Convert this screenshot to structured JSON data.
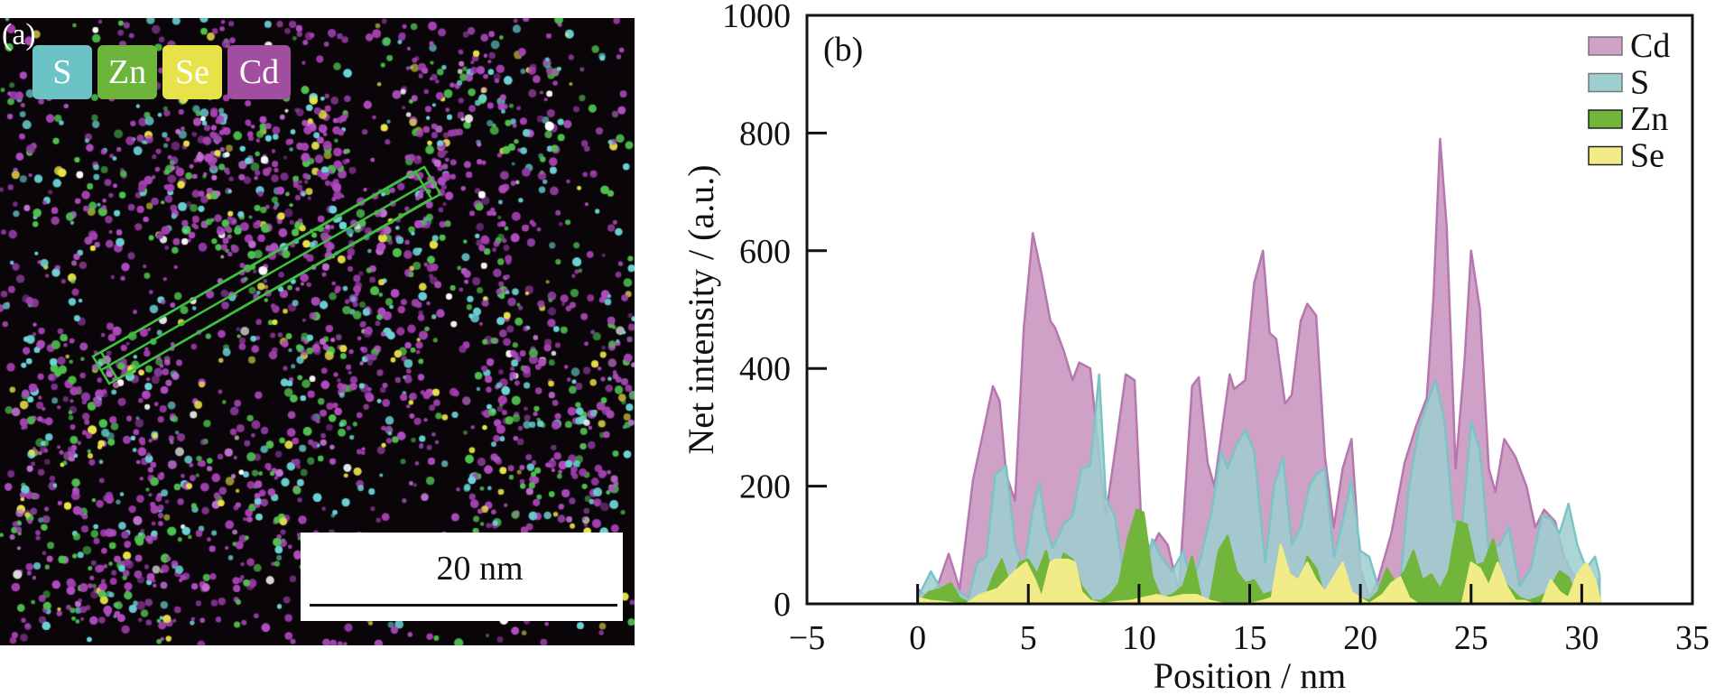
{
  "panel_a": {
    "label": "(a)",
    "elements": [
      {
        "name": "S",
        "color": "#6cc3c6"
      },
      {
        "name": "Zn",
        "color": "#6db43a"
      },
      {
        "name": "Se",
        "color": "#e8e24a"
      },
      {
        "name": "Cd",
        "color": "#a14ea0"
      }
    ],
    "scale_bar": "20 nm",
    "line_profile_color": "#3fbf3f"
  },
  "chart_data": {
    "type": "area",
    "panel_label": "(b)",
    "title": "",
    "xlabel": "Position / nm",
    "ylabel": "Net intensity / (a.u.)",
    "xlim": [
      -5,
      35
    ],
    "ylim": [
      0,
      1000
    ],
    "xticks": [
      "−5",
      "0",
      "5",
      "10",
      "15",
      "20",
      "25",
      "30",
      "35"
    ],
    "xtick_values": [
      -5,
      0,
      5,
      10,
      15,
      20,
      25,
      30,
      35
    ],
    "yticks": [
      "0",
      "200",
      "400",
      "600",
      "800",
      "1000"
    ],
    "ytick_values": [
      0,
      200,
      400,
      600,
      800,
      1000
    ],
    "grid": false,
    "legend_position": "top-right",
    "series": [
      {
        "name": "Cd",
        "fill": "#cfa1c6",
        "stroke": "#b676ae",
        "x": [
          0,
          0.5,
          0.9,
          1.4,
          1.9,
          2.5,
          2.9,
          3.4,
          3.7,
          4.0,
          4.4,
          4.8,
          5.2,
          5.6,
          6.0,
          6.2,
          6.6,
          7.0,
          7.3,
          7.8,
          8.2,
          8.5,
          9.0,
          9.4,
          9.8,
          10.1,
          10.5,
          10.9,
          11.3,
          11.8,
          12.4,
          12.7,
          13.1,
          13.4,
          13.8,
          14.1,
          14.3,
          14.8,
          15.2,
          15.6,
          15.9,
          16.2,
          16.6,
          16.9,
          17.3,
          17.6,
          18.0,
          18.4,
          18.8,
          19.2,
          19.6,
          20.0,
          20.4,
          20.8,
          21.4,
          22.0,
          22.5,
          23.0,
          23.3,
          23.6,
          23.9,
          24.3,
          24.7,
          25.0,
          25.4,
          25.8,
          26.1,
          26.5,
          27.0,
          27.5,
          27.9,
          28.3,
          28.8,
          29.2,
          29.6,
          30.1,
          30.6,
          30.8
        ],
        "y": [
          25,
          10,
          30,
          85,
          25,
          210,
          280,
          370,
          345,
          220,
          175,
          470,
          630,
          560,
          480,
          470,
          430,
          380,
          410,
          400,
          250,
          150,
          280,
          390,
          380,
          140,
          90,
          120,
          100,
          20,
          370,
          385,
          240,
          200,
          310,
          390,
          365,
          380,
          545,
          600,
          460,
          450,
          340,
          355,
          480,
          510,
          490,
          250,
          130,
          230,
          280,
          60,
          10,
          40,
          120,
          240,
          300,
          350,
          520,
          790,
          640,
          230,
          410,
          600,
          500,
          230,
          190,
          280,
          250,
          200,
          130,
          160,
          140,
          80,
          50,
          30,
          15,
          45
        ]
      },
      {
        "name": "S",
        "fill": "#9ecfcf",
        "stroke": "#7bc4c6",
        "x": [
          0,
          0.6,
          1.2,
          1.7,
          2.3,
          2.7,
          3.1,
          3.5,
          4.0,
          4.4,
          4.8,
          5.2,
          5.5,
          5.8,
          6.1,
          6.6,
          7.0,
          7.4,
          7.8,
          8.2,
          8.5,
          8.9,
          9.3,
          9.8,
          10.2,
          10.6,
          11.0,
          11.5,
          12.0,
          12.4,
          12.8,
          13.3,
          13.7,
          14.0,
          14.4,
          14.8,
          15.2,
          15.7,
          16.1,
          16.5,
          16.9,
          17.3,
          17.7,
          18.0,
          18.4,
          18.8,
          19.2,
          19.6,
          20.0,
          20.4,
          20.8,
          21.3,
          21.8,
          22.2,
          22.6,
          23.0,
          23.4,
          23.8,
          24.2,
          24.6,
          25.0,
          25.4,
          25.8,
          26.3,
          26.7,
          27.2,
          27.7,
          28.2,
          28.6,
          29.0,
          29.4,
          29.8,
          30.2,
          30.6,
          30.8
        ],
        "y": [
          10,
          55,
          15,
          25,
          10,
          70,
          80,
          220,
          235,
          100,
          60,
          160,
          205,
          130,
          95,
          135,
          150,
          230,
          235,
          390,
          180,
          150,
          50,
          60,
          40,
          110,
          80,
          55,
          90,
          35,
          80,
          160,
          260,
          230,
          270,
          295,
          260,
          70,
          200,
          250,
          100,
          130,
          200,
          220,
          230,
          80,
          140,
          210,
          90,
          80,
          30,
          10,
          35,
          200,
          290,
          340,
          380,
          310,
          140,
          130,
          310,
          260,
          90,
          100,
          130,
          30,
          60,
          150,
          145,
          120,
          170,
          100,
          60,
          80,
          50
        ]
      },
      {
        "name": "Zn",
        "fill": "#72b53b",
        "stroke": "#72b53b",
        "x": [
          0,
          0.5,
          1.0,
          1.5,
          1.9,
          2.4,
          3.0,
          3.4,
          3.8,
          4.2,
          4.6,
          5.0,
          5.4,
          5.8,
          6.2,
          6.6,
          7.0,
          7.4,
          7.9,
          8.3,
          8.7,
          9.1,
          9.5,
          9.9,
          10.2,
          10.6,
          11.0,
          11.5,
          12.0,
          12.4,
          12.8,
          13.2,
          13.6,
          14.0,
          14.4,
          14.8,
          15.2,
          15.6,
          16.0,
          16.4,
          16.8,
          17.2,
          17.6,
          18.0,
          18.4,
          18.8,
          19.2,
          19.6,
          20.0,
          20.4,
          20.8,
          21.2,
          21.6,
          22.0,
          22.4,
          22.8,
          23.2,
          23.6,
          24.0,
          24.4,
          24.8,
          25.2,
          25.6,
          26.0,
          26.4,
          26.8,
          27.2,
          27.6,
          28.0,
          28.5,
          29.0,
          29.4,
          29.8,
          30.2,
          30.6,
          30.8
        ],
        "y": [
          0,
          20,
          25,
          35,
          10,
          0,
          5,
          45,
          75,
          30,
          70,
          75,
          50,
          90,
          30,
          85,
          75,
          30,
          5,
          5,
          15,
          35,
          110,
          160,
          155,
          45,
          10,
          15,
          30,
          80,
          10,
          5,
          90,
          115,
          55,
          35,
          40,
          15,
          20,
          30,
          15,
          10,
          80,
          60,
          10,
          40,
          35,
          20,
          10,
          5,
          20,
          60,
          35,
          55,
          90,
          40,
          50,
          25,
          55,
          140,
          135,
          65,
          70,
          110,
          40,
          25,
          10,
          5,
          10,
          20,
          55,
          45,
          10,
          45,
          25,
          15
        ]
      },
      {
        "name": "Se",
        "fill": "#f2ec88",
        "stroke": "#f2ec88",
        "x": [
          0,
          0.6,
          1.2,
          1.8,
          2.2,
          2.8,
          3.2,
          3.6,
          4.0,
          4.4,
          4.9,
          5.3,
          5.6,
          6.0,
          6.2,
          6.8,
          7.1,
          7.4,
          7.8,
          8.4,
          9.0,
          9.6,
          10.2,
          10.8,
          11.4,
          12.0,
          12.6,
          13.2,
          13.8,
          14.4,
          15.0,
          15.6,
          16.0,
          16.4,
          16.8,
          17.2,
          17.6,
          18.0,
          18.4,
          18.8,
          19.2,
          19.6,
          20.0,
          20.4,
          21.0,
          21.4,
          21.8,
          22.2,
          22.6,
          23.0,
          23.6,
          24.2,
          24.6,
          25.0,
          25.4,
          25.8,
          26.2,
          26.6,
          27.0,
          27.4,
          27.8,
          28.2,
          28.6,
          29.0,
          29.4,
          29.8,
          30.2,
          30.6,
          30.8
        ],
        "y": [
          10,
          5,
          3,
          0,
          0,
          15,
          20,
          25,
          40,
          55,
          70,
          40,
          10,
          70,
          75,
          75,
          70,
          20,
          5,
          0,
          3,
          5,
          10,
          15,
          10,
          15,
          15,
          5,
          0,
          0,
          0,
          5,
          10,
          100,
          50,
          40,
          70,
          40,
          20,
          45,
          70,
          20,
          10,
          0,
          15,
          35,
          45,
          10,
          0,
          0,
          0,
          0,
          0,
          70,
          60,
          30,
          70,
          30,
          5,
          5,
          0,
          0,
          40,
          20,
          10,
          50,
          70,
          40,
          10
        ]
      }
    ]
  }
}
